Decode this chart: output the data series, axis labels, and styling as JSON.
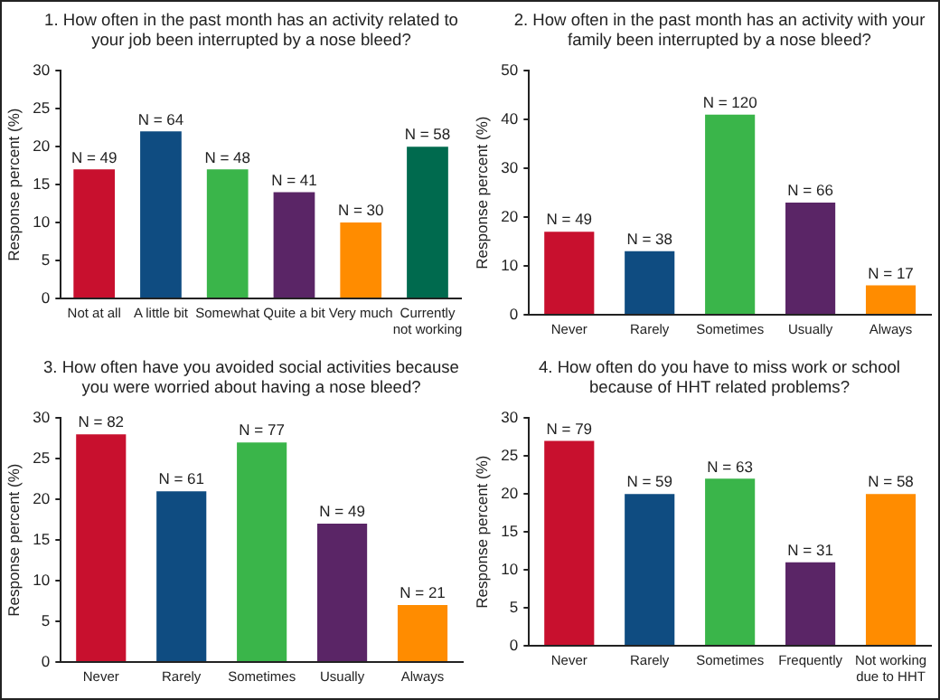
{
  "chart_data": [
    {
      "type": "bar",
      "title": "1. How often in the past month has an activity related to your job been interrupted by a nose bleed?",
      "ylabel": "Response percent (%)",
      "categories": [
        "Not at all",
        "A little bit",
        "Somewhat",
        "Quite a bit",
        "Very much",
        "Currently not working"
      ],
      "values": [
        17,
        22,
        17,
        14,
        10,
        20
      ],
      "colors": [
        "#c8102e",
        "#0f4c81",
        "#3ab54a",
        "#5a2566",
        "#ff8c00",
        "#006a4e"
      ],
      "annotations": [
        {
          "text": "N = 49",
          "x": "Not at all",
          "y": 17
        },
        {
          "text": "N = 64",
          "x": "A little bit",
          "y": 22
        },
        {
          "text": "N = 48",
          "x": "Somewhat",
          "y": 17
        },
        {
          "text": "N = 41",
          "x": "Quite a bit",
          "y": 14
        },
        {
          "text": "N = 30",
          "x": "Very much",
          "y": 10
        },
        {
          "text": "N = 58",
          "x": "Currently not working",
          "y": 20
        }
      ],
      "ylim": [
        0,
        30
      ],
      "yticks": [
        0,
        5,
        10,
        15,
        20,
        25,
        30
      ]
    },
    {
      "type": "bar",
      "title": "2. How often in the past month has an activity with your family been interrupted by a nose bleed?",
      "ylabel": "Response percent (%)",
      "categories": [
        "Never",
        "Rarely",
        "Sometimes",
        "Usually",
        "Always"
      ],
      "values": [
        17,
        13,
        41,
        23,
        6
      ],
      "colors": [
        "#c8102e",
        "#0f4c81",
        "#3ab54a",
        "#5a2566",
        "#ff8c00"
      ],
      "annotations": [
        {
          "text": "N = 49",
          "x": "Never",
          "y": 17
        },
        {
          "text": "N = 38",
          "x": "Rarely",
          "y": 13
        },
        {
          "text": "N = 120",
          "x": "Sometimes",
          "y": 41
        },
        {
          "text": "N = 66",
          "x": "Usually",
          "y": 23
        },
        {
          "text": "N = 17",
          "x": "Always",
          "y": 6
        }
      ],
      "ylim": [
        0,
        50
      ],
      "yticks": [
        0,
        10,
        20,
        30,
        40,
        50
      ]
    },
    {
      "type": "bar",
      "title": "3. How often have you avoided social activities because you were worried about having a nose bleed?",
      "ylabel": "Response percent (%)",
      "categories": [
        "Never",
        "Rarely",
        "Sometimes",
        "Usually",
        "Always"
      ],
      "values": [
        28,
        21,
        27,
        17,
        7
      ],
      "colors": [
        "#c8102e",
        "#0f4c81",
        "#3ab54a",
        "#5a2566",
        "#ff8c00"
      ],
      "annotations": [
        {
          "text": "N = 82",
          "x": "Never",
          "y": 28
        },
        {
          "text": "N = 61",
          "x": "Rarely",
          "y": 21
        },
        {
          "text": "N = 77",
          "x": "Sometimes",
          "y": 27
        },
        {
          "text": "N = 49",
          "x": "Usually",
          "y": 17
        },
        {
          "text": "N = 21",
          "x": "Always",
          "y": 7
        }
      ],
      "ylim": [
        0,
        30
      ],
      "yticks": [
        0,
        5,
        10,
        15,
        20,
        25,
        30
      ]
    },
    {
      "type": "bar",
      "title": "4. How often do you have to miss work or school because of HHT related problems?",
      "ylabel": "Response percent (%)",
      "categories": [
        "Never",
        "Rarely",
        "Sometimes",
        "Frequently",
        "Not working due to HHT"
      ],
      "values": [
        27,
        20,
        22,
        11,
        20
      ],
      "colors": [
        "#c8102e",
        "#0f4c81",
        "#3ab54a",
        "#5a2566",
        "#ff8c00"
      ],
      "annotations": [
        {
          "text": "N = 79",
          "x": "Never",
          "y": 27
        },
        {
          "text": "N = 59",
          "x": "Rarely",
          "y": 20
        },
        {
          "text": "N = 63",
          "x": "Sometimes",
          "y": 22
        },
        {
          "text": "N = 31",
          "x": "Frequently",
          "y": 11
        },
        {
          "text": "N = 58",
          "x": "Not working due to HHT",
          "y": 20
        }
      ],
      "ylim": [
        0,
        30
      ],
      "yticks": [
        0,
        5,
        10,
        15,
        20,
        25,
        30
      ]
    }
  ]
}
